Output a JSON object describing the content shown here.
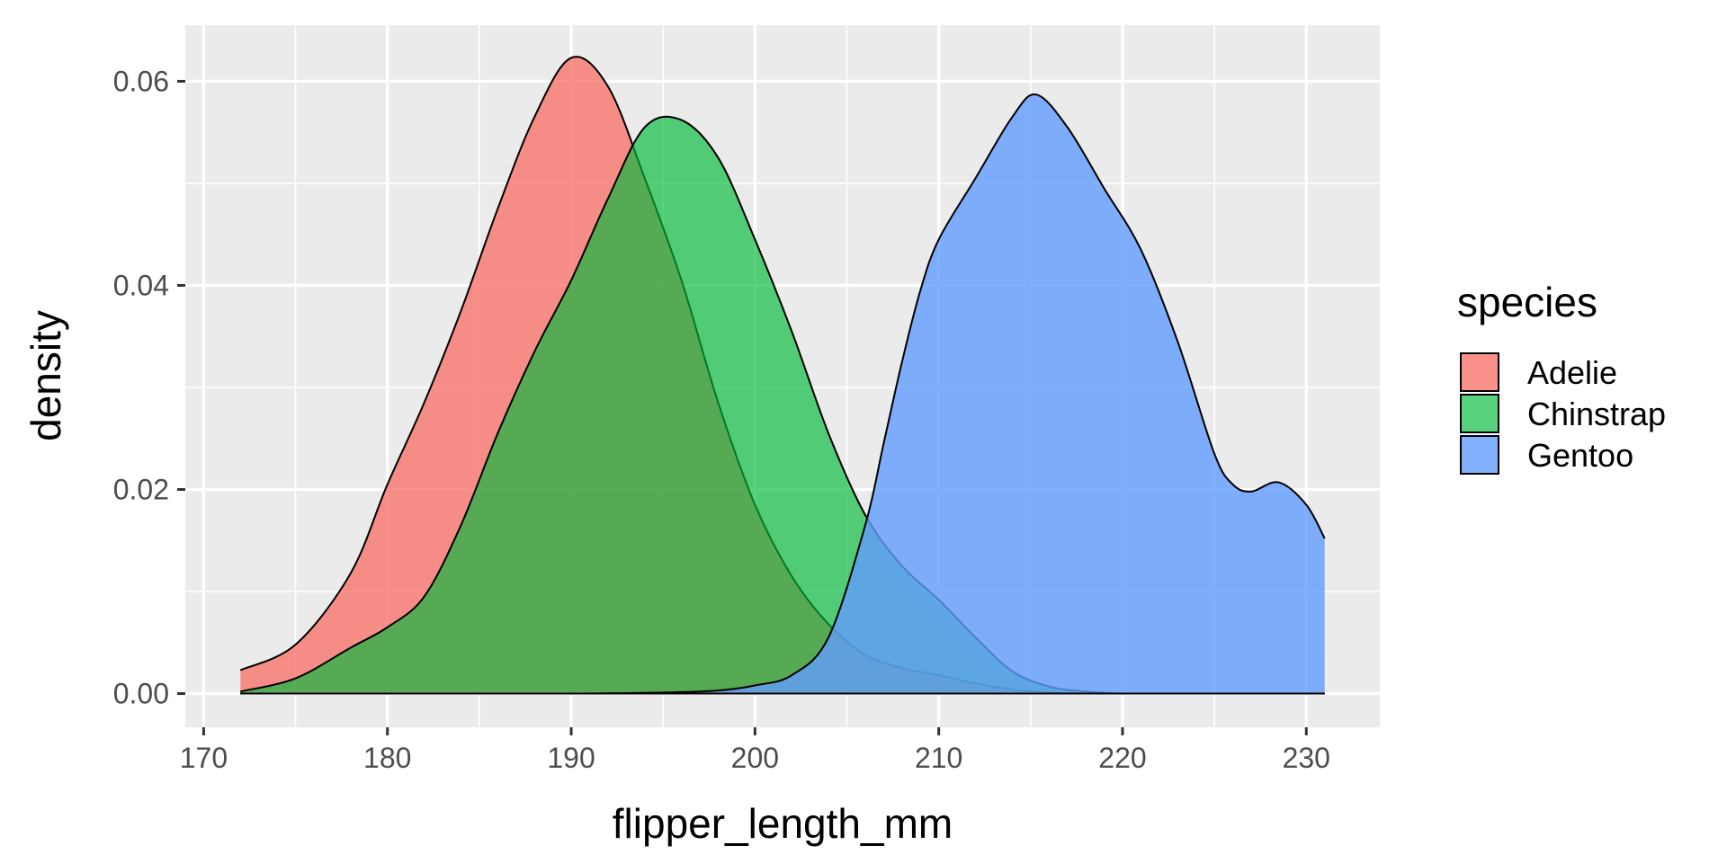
{
  "chart_data": {
    "type": "area",
    "xlabel": "flipper_length_mm",
    "ylabel": "density",
    "xlim": [
      169,
      234
    ],
    "ylim": [
      -0.0033,
      0.0655
    ],
    "x_ticks": [
      170,
      180,
      190,
      200,
      210,
      220,
      230
    ],
    "x_tick_labels": [
      "170",
      "180",
      "190",
      "200",
      "210",
      "220",
      "230"
    ],
    "y_ticks": [
      0.0,
      0.02,
      0.04,
      0.06
    ],
    "y_tick_labels": [
      "0.00",
      "0.02",
      "0.04",
      "0.06"
    ],
    "grid": true,
    "legend": {
      "title": "species",
      "position": "right"
    },
    "series": [
      {
        "name": "Adelie",
        "color": "#F8766D",
        "opacity": 0.8,
        "x": [
          172,
          175,
          178,
          180,
          182,
          184,
          186,
          188,
          190,
          192,
          194,
          196,
          198,
          200,
          202,
          204,
          206,
          208,
          210,
          212,
          214,
          216,
          218,
          220,
          222,
          225,
          228,
          231
        ],
        "y": [
          0.0023,
          0.0048,
          0.0118,
          0.0205,
          0.0285,
          0.0375,
          0.0475,
          0.0565,
          0.0623,
          0.0595,
          0.0505,
          0.0405,
          0.0285,
          0.0185,
          0.0115,
          0.0068,
          0.0038,
          0.0025,
          0.0018,
          0.001,
          0.0004,
          0.0001,
          0.0,
          0.0,
          0.0,
          0.0,
          0.0,
          0.0
        ]
      },
      {
        "name": "Chinstrap",
        "color": "#00BA38",
        "opacity": 0.65,
        "x": [
          172,
          175,
          178,
          180,
          182,
          184,
          186,
          188,
          190,
          192,
          194,
          196,
          198,
          200,
          202,
          204,
          206,
          208,
          210,
          212,
          214,
          216,
          218,
          220,
          222,
          225,
          228,
          231
        ],
        "y": [
          0.0002,
          0.0015,
          0.0045,
          0.0065,
          0.0095,
          0.0165,
          0.0255,
          0.0335,
          0.0405,
          0.0485,
          0.0555,
          0.0562,
          0.0525,
          0.0445,
          0.0355,
          0.0255,
          0.0175,
          0.0125,
          0.0092,
          0.0055,
          0.0022,
          0.0007,
          0.0002,
          0.0,
          0.0,
          0.0,
          0.0,
          0.0
        ]
      },
      {
        "name": "Gentoo",
        "color": "#619CFF",
        "opacity": 0.8,
        "x": [
          172,
          180,
          190,
          195,
          198,
          200,
          202,
          204,
          206,
          207,
          208,
          209,
          210,
          212,
          214,
          215.3,
          217,
          219,
          221,
          223,
          225,
          226,
          227,
          228.5,
          230,
          231
        ],
        "y": [
          0.0,
          0.0,
          0.0,
          0.0001,
          0.0003,
          0.0008,
          0.0018,
          0.0055,
          0.0165,
          0.0245,
          0.0325,
          0.0395,
          0.0445,
          0.0505,
          0.0565,
          0.0587,
          0.0555,
          0.0495,
          0.0435,
          0.0345,
          0.0235,
          0.0205,
          0.0198,
          0.0207,
          0.0185,
          0.0152
        ]
      }
    ]
  }
}
